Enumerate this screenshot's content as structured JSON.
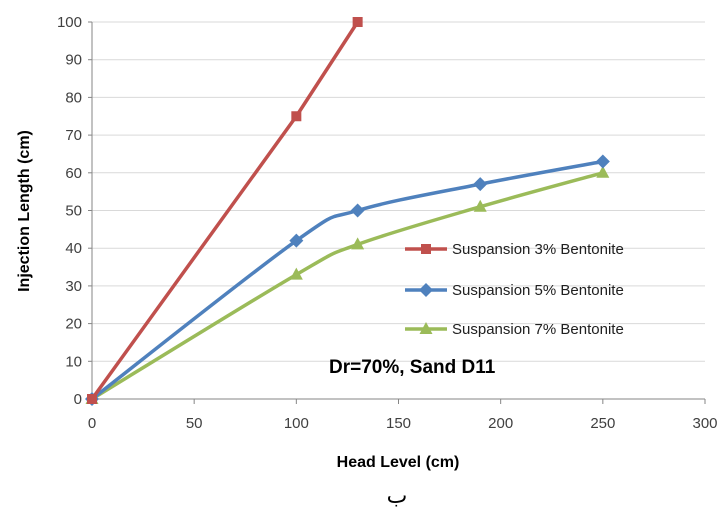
{
  "chart_data": {
    "type": "line",
    "title": "",
    "xlabel": "Head Level (cm)",
    "ylabel": "Injection Length  (cm)",
    "xlim": [
      0,
      300
    ],
    "ylim": [
      0,
      100
    ],
    "x_ticks": [
      0,
      50,
      100,
      150,
      200,
      250,
      300
    ],
    "y_ticks": [
      0,
      10,
      20,
      30,
      40,
      50,
      60,
      70,
      80,
      90,
      100
    ],
    "grid": "horizontal",
    "legend_position": "right",
    "series": [
      {
        "name": "Suspansion 3% Bentonite",
        "color": "#c0504d",
        "marker": "square",
        "smooth": false,
        "points": [
          [
            0,
            0
          ],
          [
            100,
            75
          ],
          [
            130,
            100
          ]
        ]
      },
      {
        "name": "Suspansion 5% Bentonite",
        "color": "#4f81bd",
        "marker": "diamond",
        "smooth": true,
        "points": [
          [
            0,
            0
          ],
          [
            100,
            42
          ],
          [
            130,
            50
          ],
          [
            190,
            57
          ],
          [
            250,
            63
          ]
        ]
      },
      {
        "name": "Suspansion 7% Bentonite",
        "color": "#9bbb59",
        "marker": "triangle",
        "smooth": true,
        "points": [
          [
            0,
            0
          ],
          [
            100,
            33
          ],
          [
            130,
            41
          ],
          [
            190,
            51
          ],
          [
            250,
            60
          ]
        ]
      }
    ],
    "annotation": "Dr=70%, Sand  D11"
  },
  "caption": "ب"
}
